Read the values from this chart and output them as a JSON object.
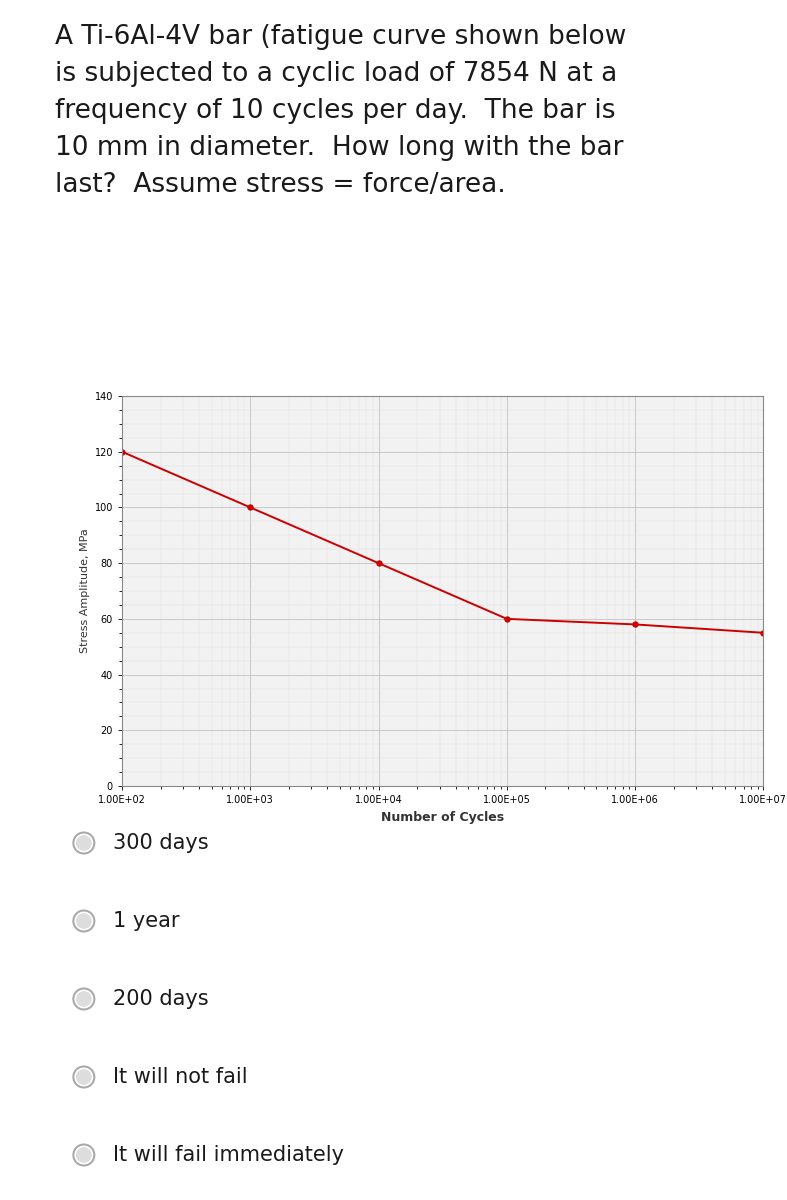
{
  "question_text": "A Ti-6Al-4V bar (fatigue curve shown below\nis subjected to a cyclic load of 7854 N at a\nfrequency of 10 cycles per day.  The bar is\n10 mm in diameter.  How long with the bar\nlast?  Assume stress = force/area.",
  "curve_x": [
    100,
    1000,
    10000,
    100000,
    1000000,
    10000000
  ],
  "curve_y": [
    120,
    100,
    80,
    60,
    58,
    55
  ],
  "line_color": "#cc0000",
  "marker_color": "#cc0000",
  "marker_size": 4,
  "ylim": [
    0,
    140
  ],
  "yticks": [
    0,
    20,
    40,
    60,
    80,
    100,
    120,
    140
  ],
  "xtick_labels": [
    "1.00E+02",
    "1.00E+03",
    "1.00E+04",
    "1.00E+05",
    "1.00E+06",
    "1.00E+07"
  ],
  "xtick_positions": [
    100,
    1000,
    10000,
    100000,
    1000000,
    10000000
  ],
  "xlabel": "Number of Cycles",
  "ylabel": "Stress Amplitude, MPa",
  "grid_major_color": "#c8c8c8",
  "grid_minor_color": "#dedede",
  "chart_bg": "#f2f2f2",
  "border_color": "#888888",
  "question_fontsize": 19,
  "axis_label_fontsize": 8,
  "tick_fontsize": 7,
  "options": [
    "300 days",
    "1 year",
    "200 days",
    "It will not fail",
    "It will fail immediately"
  ],
  "option_fontsize": 15,
  "page_bg": "#ffffff",
  "divider_color": "#cccccc",
  "radio_color": "#aaaaaa",
  "radio_inner_color": "#dddddd"
}
